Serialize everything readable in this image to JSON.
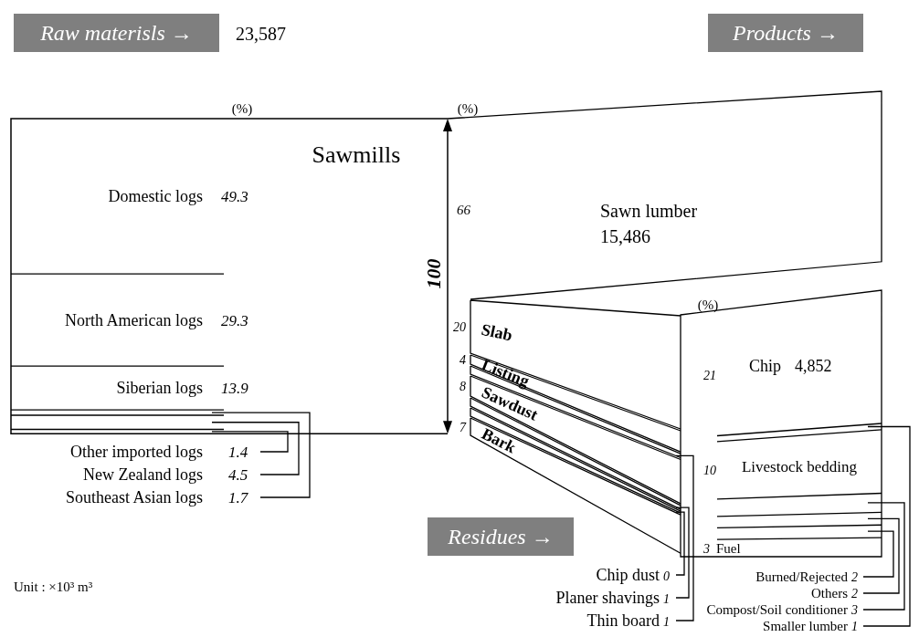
{
  "chart_data": [
    {
      "type": "other",
      "title": "Raw materisls →",
      "subtitle": "23,587",
      "categories": [
        "Domestic logs",
        "North American logs",
        "Siberian logs",
        "Other imported logs",
        "New Zealand logs",
        "Southeast Asian logs"
      ],
      "values": [
        49.3,
        29.3,
        13.9,
        1.4,
        4.5,
        1.7
      ],
      "data_labels": true,
      "annotations": [
        "Sawmills",
        "(%)",
        "Unit : ×10³ m³"
      ]
    },
    {
      "type": "other",
      "title": "Products →",
      "categories": [
        "Sawn lumber"
      ],
      "values": [
        66
      ],
      "data_labels": true,
      "annotations": [
        "15,486",
        "(%)",
        "100"
      ]
    },
    {
      "type": "other",
      "title": "Residues →",
      "categories": [
        "Slab",
        "Listing",
        "Thin board",
        "Sawdust",
        "Planer shavings",
        "Chip dust",
        "Bark"
      ],
      "values": [
        20,
        4,
        1,
        8,
        1,
        0,
        7
      ],
      "data_labels": true
    },
    {
      "type": "other",
      "categories": [
        "Chip",
        "Smaller lumber",
        "Livestock bedding",
        "Compost/Soil conditioner",
        "Others",
        "Burned/Rejected",
        "Fuel"
      ],
      "values": [
        21,
        1,
        10,
        3,
        2,
        2,
        3
      ],
      "data_labels": true,
      "annotations": [
        "4,852",
        "(%)"
      ]
    }
  ]
}
